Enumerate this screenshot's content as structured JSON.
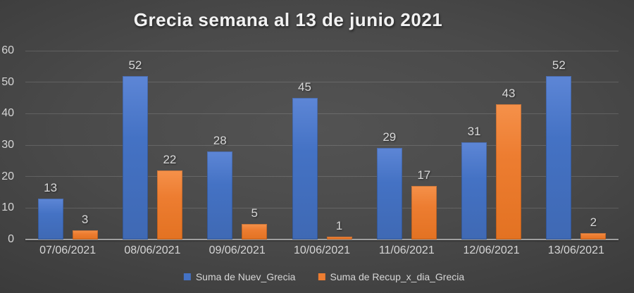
{
  "chart_data": {
    "type": "bar",
    "title": "Grecia semana al 13 de junio 2021",
    "categories": [
      "07/06/2021",
      "08/06/2021",
      "09/06/2021",
      "10/06/2021",
      "11/06/2021",
      "12/06/2021",
      "13/06/2021"
    ],
    "series": [
      {
        "name": "Suma de Nuev_Grecia",
        "color": "#4472C4",
        "values": [
          13,
          52,
          28,
          45,
          29,
          31,
          52
        ]
      },
      {
        "name": "Suma de Recup_x_dia_Grecia",
        "color": "#ED7D31",
        "values": [
          3,
          22,
          5,
          1,
          17,
          43,
          2
        ]
      }
    ],
    "xlabel": "",
    "ylabel": "",
    "ylim": [
      0,
      60
    ],
    "ytick_step": 10,
    "grid": true,
    "data_labels": true,
    "legend_position": "bottom"
  },
  "colors": {
    "background_center": "#4e4e4e",
    "background_edge": "#262626",
    "gridline": "rgba(255,255,255,0.14)",
    "axis_line": "#a0a0a0",
    "tick_text": "#d6d6d6",
    "title_text": "#f2f2f2"
  }
}
